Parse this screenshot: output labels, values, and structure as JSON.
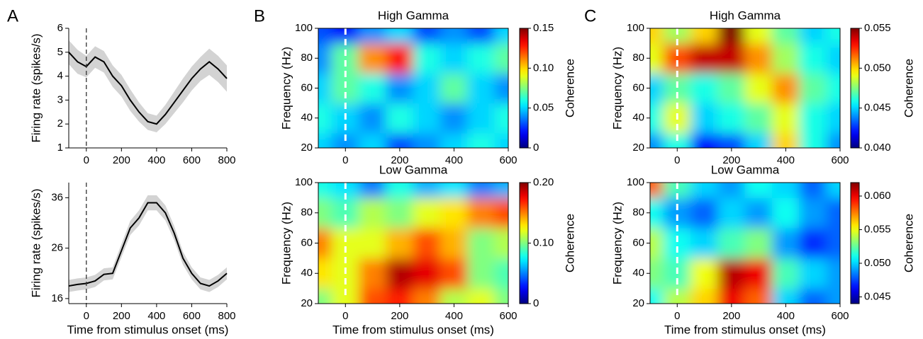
{
  "panels": [
    "A",
    "B",
    "C"
  ],
  "chart_data": [
    {
      "type": "line",
      "ylabel": "Firing rate (spikes/s)",
      "x": [
        -100,
        -50,
        0,
        50,
        100,
        150,
        200,
        250,
        300,
        350,
        400,
        450,
        500,
        550,
        600,
        650,
        700,
        750,
        800
      ],
      "series": [
        {
          "color": "#000000",
          "band_color": "#d3d3d3",
          "values": [
            5.0,
            4.6,
            4.4,
            4.8,
            4.6,
            4.0,
            3.6,
            3.0,
            2.5,
            2.1,
            2.0,
            2.4,
            2.9,
            3.4,
            3.9,
            4.3,
            4.6,
            4.3,
            3.9
          ],
          "error": [
            0.5,
            0.5,
            0.45,
            0.45,
            0.45,
            0.45,
            0.45,
            0.45,
            0.4,
            0.35,
            0.35,
            0.4,
            0.45,
            0.5,
            0.5,
            0.5,
            0.55,
            0.55,
            0.55
          ]
        }
      ],
      "xlim": [
        -100,
        800
      ],
      "xticks": [
        0,
        200,
        400,
        600,
        800
      ],
      "ylim": [
        1,
        6
      ],
      "yticks": [
        1,
        2,
        3,
        4,
        5,
        6
      ]
    },
    {
      "type": "line",
      "ylabel": "Firing rate (spikes/s)",
      "xlabel": "Time from stimulus onset (ms)",
      "x": [
        -100,
        -50,
        0,
        50,
        100,
        150,
        200,
        250,
        300,
        350,
        400,
        450,
        500,
        550,
        600,
        650,
        700,
        750,
        800
      ],
      "series": [
        {
          "color": "#000000",
          "band_color": "#d3d3d3",
          "values": [
            18.5,
            18.8,
            19,
            19.5,
            20.8,
            21,
            25.5,
            30,
            32,
            35,
            35,
            33,
            29,
            24,
            21,
            19,
            18.5,
            19.5,
            21
          ],
          "error": [
            1.2,
            1.2,
            1.2,
            1.2,
            1.2,
            1.2,
            1.3,
            1.4,
            1.5,
            1.5,
            1.5,
            1.5,
            1.4,
            1.3,
            1.2,
            1.2,
            1.2,
            1.2,
            1.2
          ]
        }
      ],
      "xlim": [
        -100,
        800
      ],
      "xticks": [
        0,
        200,
        400,
        600,
        800
      ],
      "ylim": [
        15,
        39
      ],
      "yticks": [
        16,
        26,
        36
      ]
    },
    {
      "type": "heatmap",
      "title": "High Gamma",
      "ylabel": "Frequency (Hz)",
      "colorbar_label": "Coherence",
      "x": [
        -100,
        0,
        100,
        200,
        300,
        400,
        500,
        600
      ],
      "y": [
        20,
        40,
        60,
        80,
        100
      ],
      "z": [
        [
          0.05,
          0.04,
          0.05,
          0.03,
          0.04,
          0.05,
          0.06,
          0.05
        ],
        [
          0.06,
          0.05,
          0.04,
          0.06,
          0.05,
          0.04,
          0.05,
          0.06
        ],
        [
          0.05,
          0.07,
          0.06,
          0.04,
          0.05,
          0.07,
          0.05,
          0.04
        ],
        [
          0.04,
          0.07,
          0.11,
          0.13,
          0.06,
          0.05,
          0.06,
          0.07
        ],
        [
          0.03,
          0.02,
          0.04,
          0.05,
          0.03,
          0.04,
          0.03,
          0.05
        ]
      ],
      "xlim": [
        -100,
        600
      ],
      "xticks": [
        0,
        200,
        400,
        600
      ],
      "ylim": [
        20,
        100
      ],
      "yticks": [
        20,
        40,
        60,
        80,
        100
      ],
      "zlim": [
        0,
        0.15
      ],
      "zticks": [
        0,
        0.05,
        {
          "value": 0.1,
          "label": "0.10"
        },
        0.15
      ],
      "colormap": "jet"
    },
    {
      "type": "heatmap",
      "title": "Low Gamma",
      "ylabel": "Frequency (Hz)",
      "colorbar_label": "Coherence",
      "xlabel": "Time from stimulus onset (ms)",
      "x": [
        -100,
        0,
        100,
        200,
        300,
        400,
        500,
        600
      ],
      "y": [
        20,
        40,
        60,
        80,
        100
      ],
      "z": [
        [
          0.1,
          0.12,
          0.16,
          0.17,
          0.15,
          0.11,
          0.12,
          0.1
        ],
        [
          0.13,
          0.12,
          0.15,
          0.19,
          0.18,
          0.16,
          0.1,
          0.09
        ],
        [
          0.15,
          0.12,
          0.12,
          0.14,
          0.16,
          0.14,
          0.1,
          0.11
        ],
        [
          0.1,
          0.09,
          0.11,
          0.1,
          0.12,
          0.13,
          0.15,
          0.16
        ],
        [
          0.08,
          0.07,
          0.05,
          0.08,
          0.06,
          0.07,
          0.05,
          0.06
        ]
      ],
      "xlim": [
        -100,
        600
      ],
      "xticks": [
        0,
        200,
        400,
        600
      ],
      "ylim": [
        20,
        100
      ],
      "yticks": [
        20,
        40,
        60,
        80,
        100
      ],
      "zlim": [
        0,
        0.2
      ],
      "zticks": [
        0,
        {
          "value": 0.1,
          "label": "0.10"
        },
        {
          "value": 0.2,
          "label": "0.20"
        }
      ],
      "colormap": "jet"
    },
    {
      "type": "heatmap",
      "title": "High Gamma",
      "ylabel": "Frequency (Hz)",
      "colorbar_label": "Coherence",
      "x": [
        -100,
        0,
        100,
        200,
        300,
        400,
        500,
        600
      ],
      "y": [
        20,
        40,
        60,
        80,
        100
      ],
      "z": [
        [
          0.044,
          0.046,
          0.042,
          0.043,
          0.045,
          0.05,
          0.046,
          0.044
        ],
        [
          0.046,
          0.049,
          0.045,
          0.046,
          0.047,
          0.049,
          0.046,
          0.045
        ],
        [
          0.045,
          0.047,
          0.046,
          0.047,
          0.049,
          0.051,
          0.047,
          0.046
        ],
        [
          0.049,
          0.052,
          0.054,
          0.054,
          0.051,
          0.048,
          0.046,
          0.045
        ],
        [
          0.05,
          0.048,
          0.05,
          0.055,
          0.049,
          0.047,
          0.045,
          0.046
        ]
      ],
      "xlim": [
        -100,
        600
      ],
      "xticks": [
        0,
        200,
        400,
        600
      ],
      "ylim": [
        20,
        100
      ],
      "yticks": [
        20,
        40,
        60,
        80,
        100
      ],
      "zlim": [
        0.04,
        0.055
      ],
      "zticks": [
        {
          "value": 0.04,
          "label": "0.040"
        },
        0.045,
        {
          "value": 0.05,
          "label": "0.050"
        },
        0.055
      ],
      "colormap": "jet"
    },
    {
      "type": "heatmap",
      "title": "Low Gamma",
      "ylabel": "Frequency (Hz)",
      "colorbar_label": "Coherence",
      "xlabel": "Time from stimulus onset (ms)",
      "x": [
        -100,
        0,
        100,
        200,
        300,
        400,
        500,
        600
      ],
      "y": [
        20,
        40,
        60,
        80,
        100
      ],
      "z": [
        [
          0.051,
          0.054,
          0.056,
          0.06,
          0.058,
          0.05,
          0.048,
          0.049
        ],
        [
          0.053,
          0.052,
          0.055,
          0.061,
          0.06,
          0.052,
          0.05,
          0.049
        ],
        [
          0.054,
          0.051,
          0.05,
          0.052,
          0.053,
          0.049,
          0.047,
          0.048
        ],
        [
          0.051,
          0.049,
          0.048,
          0.05,
          0.049,
          0.051,
          0.049,
          0.048
        ],
        [
          0.058,
          0.052,
          0.05,
          0.049,
          0.051,
          0.05,
          0.048,
          0.05
        ]
      ],
      "xlim": [
        -100,
        600
      ],
      "xticks": [
        0,
        200,
        400,
        600
      ],
      "ylim": [
        20,
        100
      ],
      "yticks": [
        20,
        40,
        60,
        80,
        100
      ],
      "zlim": [
        0.044,
        0.062
      ],
      "zticks": [
        0.045,
        {
          "value": 0.05,
          "label": "0.050"
        },
        0.055,
        {
          "value": 0.06,
          "label": "0.060"
        }
      ],
      "colormap": "jet"
    }
  ]
}
